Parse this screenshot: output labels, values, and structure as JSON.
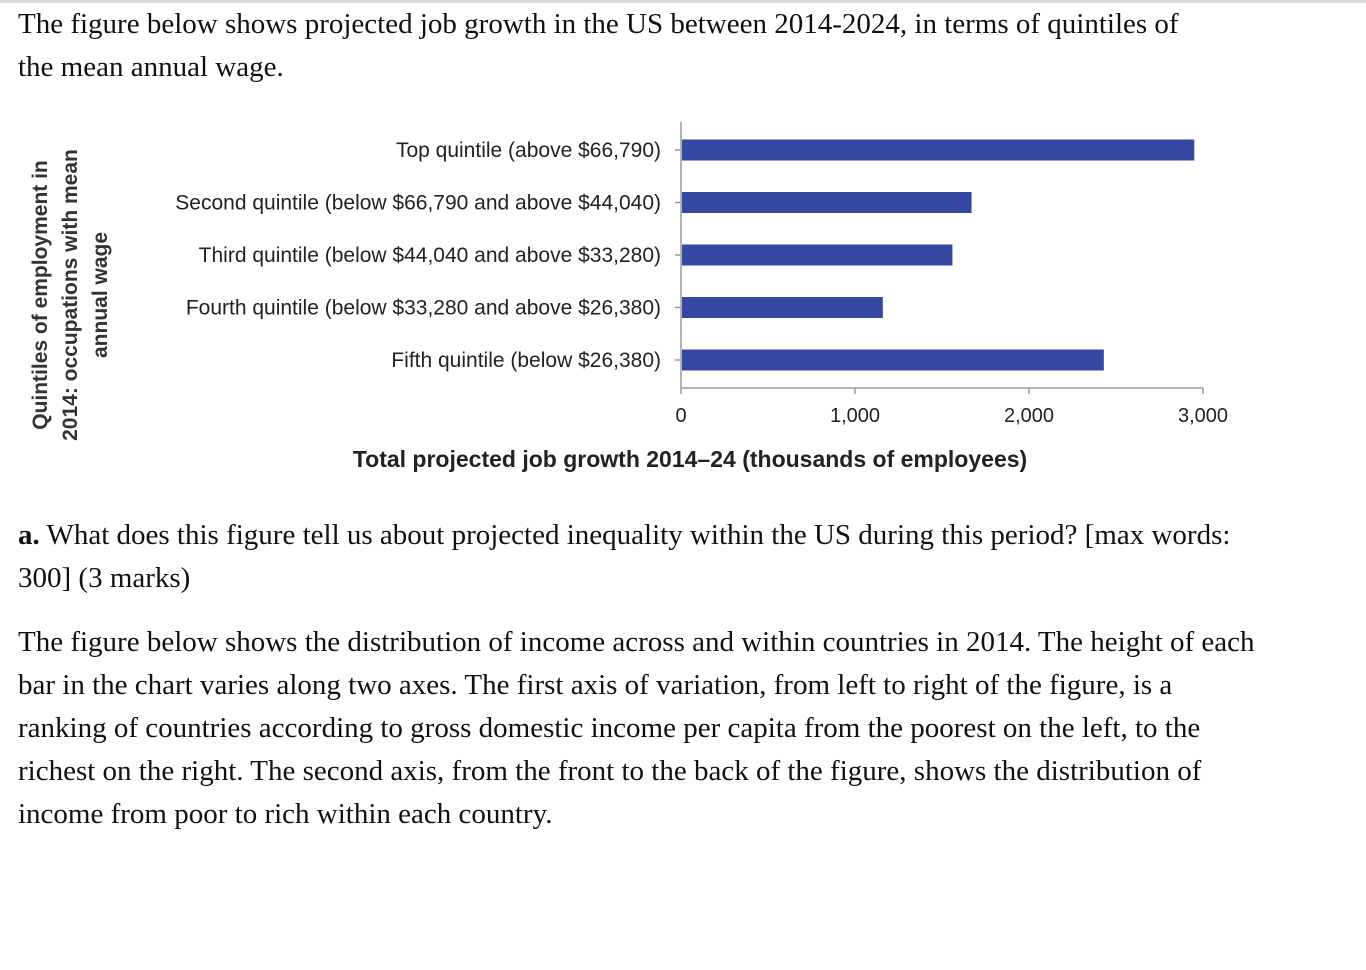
{
  "intro_text": "The figure below shows projected job growth in the US between 2014-2024, in terms of quintiles of the mean annual wage.",
  "chart_data": {
    "type": "bar",
    "orientation": "horizontal",
    "categories": [
      "Top quintile (above $66,790)",
      "Second quintile (below $66,790 and above $44,040)",
      "Third quintile (below $44,040 and above $33,280)",
      "Fourth quintile (below $33,280 and above $26,380)",
      "Fifth quintile (below $26,380)"
    ],
    "values": [
      2950,
      1670,
      1560,
      1160,
      2430
    ],
    "xlabel": "Total projected job growth 2014–24 (thousands of employees)",
    "ylabel_lines": [
      "Quintiles of employment in",
      "2014: occupations with mean",
      "annual wage"
    ],
    "xlim": [
      0,
      3000
    ],
    "xticks": [
      0,
      1000,
      2000,
      3000
    ],
    "xtick_labels": [
      "0",
      "1,000",
      "2,000",
      "3,000"
    ],
    "bar_color": "#3547a0",
    "grid": false,
    "legend": "none"
  },
  "question": {
    "letter": "a.",
    "text": " What does this figure tell us about projected inequality within the US during this period? [max words: 300] (3 marks)"
  },
  "description_text": "The figure below shows the distribution of income across and within countries in 2014. The height of each bar in the chart varies along two axes. The first axis of variation, from left to right of the figure, is a ranking of countries according to gross domestic income per capita from the poorest on the left, to the richest on the right. The second axis, from the front to the back of the figure, shows the distribution of income from poor to rich within each country."
}
